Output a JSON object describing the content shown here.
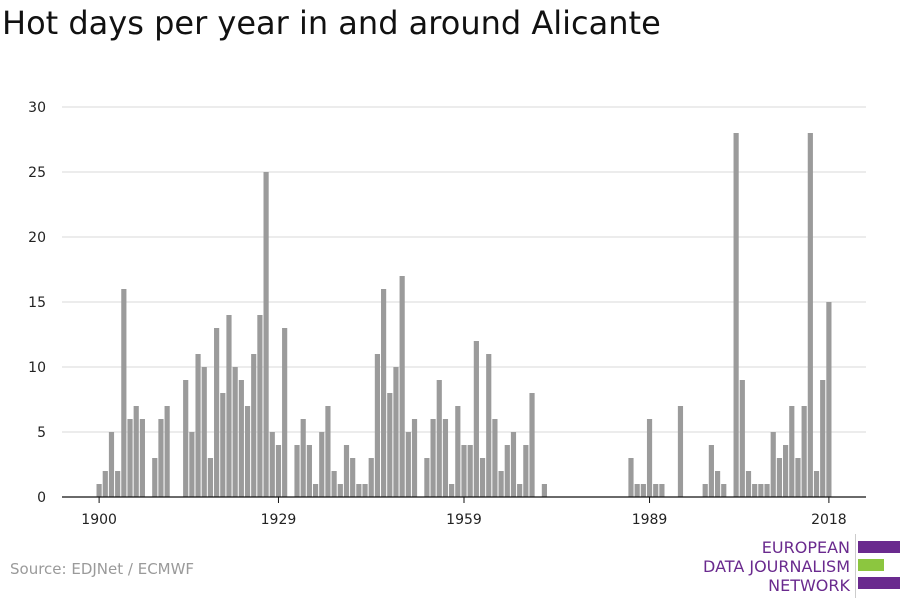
{
  "title": "Hot days per year in and around Alicante",
  "source": "Source: EDJNet / ECMWF",
  "logo": {
    "lines": [
      "EUROPEAN",
      "DATA JOURNALISM",
      "NETWORK"
    ],
    "purple": "#6a2a8e",
    "green": "#8cc63f"
  },
  "chart_data": {
    "type": "bar",
    "bar_color": "#9b9b9b",
    "grid_color": "#d9d9d9",
    "grid": true,
    "ylim": [
      0,
      30
    ],
    "yticks": [
      0,
      5,
      10,
      15,
      20,
      25,
      30
    ],
    "xticks": [
      1900,
      1929,
      1959,
      1989,
      2018
    ],
    "xlim": [
      1894,
      2024
    ],
    "years": [
      1900,
      1901,
      1902,
      1903,
      1904,
      1905,
      1906,
      1907,
      1908,
      1909,
      1910,
      1911,
      1912,
      1913,
      1914,
      1915,
      1916,
      1917,
      1918,
      1919,
      1920,
      1921,
      1922,
      1923,
      1924,
      1925,
      1926,
      1927,
      1928,
      1929,
      1930,
      1931,
      1932,
      1933,
      1934,
      1935,
      1936,
      1937,
      1938,
      1939,
      1940,
      1941,
      1942,
      1943,
      1944,
      1945,
      1946,
      1947,
      1948,
      1949,
      1950,
      1951,
      1952,
      1953,
      1954,
      1955,
      1956,
      1957,
      1958,
      1959,
      1960,
      1961,
      1962,
      1963,
      1964,
      1965,
      1966,
      1967,
      1968,
      1969,
      1970,
      1971,
      1972,
      1973,
      1974,
      1975,
      1976,
      1977,
      1978,
      1979,
      1980,
      1981,
      1982,
      1983,
      1984,
      1985,
      1986,
      1987,
      1988,
      1989,
      1990,
      1991,
      1992,
      1993,
      1994,
      1995,
      1996,
      1997,
      1998,
      1999,
      2000,
      2001,
      2002,
      2003,
      2004,
      2005,
      2006,
      2007,
      2008,
      2009,
      2010,
      2011,
      2012,
      2013,
      2014,
      2015,
      2016,
      2017,
      2018,
      2019
    ],
    "values": [
      1,
      2,
      5,
      2,
      16,
      6,
      7,
      6,
      0,
      3,
      6,
      7,
      0,
      0,
      9,
      5,
      11,
      10,
      3,
      13,
      8,
      14,
      10,
      9,
      7,
      11,
      14,
      25,
      5,
      4,
      13,
      0,
      4,
      6,
      4,
      1,
      5,
      7,
      2,
      1,
      4,
      3,
      1,
      1,
      3,
      11,
      16,
      8,
      10,
      17,
      5,
      6,
      0,
      3,
      6,
      9,
      6,
      1,
      7,
      4,
      4,
      12,
      3,
      11,
      6,
      2,
      4,
      5,
      1,
      4,
      8,
      0,
      1,
      0,
      0,
      0,
      0,
      0,
      0,
      0,
      0,
      0,
      0,
      0,
      0,
      0,
      3,
      1,
      1,
      6,
      1,
      1,
      0,
      0,
      7,
      0,
      0,
      0,
      1,
      4,
      2,
      1,
      0,
      28,
      9,
      2,
      1,
      1,
      1,
      5,
      3,
      4,
      7,
      3,
      7,
      28,
      2,
      9,
      15,
      0
    ]
  }
}
